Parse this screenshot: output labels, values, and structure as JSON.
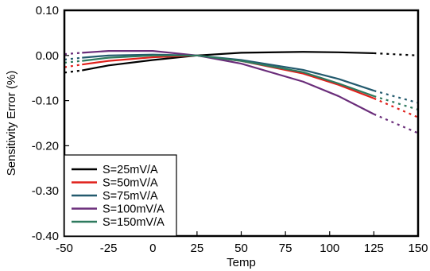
{
  "chart_data": {
    "type": "line",
    "xlabel": "Temp",
    "ylabel": "Sensitivity Error (%)",
    "xlim": [
      -50,
      150
    ],
    "ylim": [
      -0.4,
      0.1
    ],
    "xticks": [
      -50,
      -25,
      0,
      25,
      50,
      75,
      100,
      125,
      150
    ],
    "yticks": [
      0.1,
      0.0,
      -0.1,
      -0.2,
      -0.3,
      -0.4
    ],
    "xtick_labels": [
      "-50",
      "-25",
      "0",
      "25",
      "50",
      "75",
      "100",
      "125",
      "150"
    ],
    "ytick_labels": [
      "0.10",
      "0.00",
      "-0.10",
      "-0.20",
      "-0.30",
      "-0.40"
    ],
    "grid": false,
    "legend_position": "bottom-left",
    "series": [
      {
        "name": "S=25mV/A",
        "color": "#000000",
        "solid": {
          "x": [
            -40,
            -25,
            0,
            25,
            50,
            85,
            105,
            125
          ],
          "y": [
            -0.033,
            -0.022,
            -0.01,
            0.0,
            0.006,
            0.008,
            0.007,
            0.005
          ]
        },
        "dashed": [
          {
            "x": [
              -50,
              -40
            ],
            "y": [
              -0.038,
              -0.033
            ]
          },
          {
            "x": [
              125,
              150
            ],
            "y": [
              0.005,
              0.0
            ]
          }
        ]
      },
      {
        "name": "S=50mV/A",
        "color": "#e0201b",
        "solid": {
          "x": [
            -40,
            -25,
            0,
            25,
            50,
            85,
            105,
            125
          ],
          "y": [
            -0.02,
            -0.012,
            -0.004,
            0.0,
            -0.012,
            -0.04,
            -0.065,
            -0.095
          ]
        },
        "dashed": [
          {
            "x": [
              -50,
              -40
            ],
            "y": [
              -0.026,
              -0.02
            ]
          },
          {
            "x": [
              125,
              150
            ],
            "y": [
              -0.095,
              -0.137
            ]
          }
        ]
      },
      {
        "name": "S=75mV/A",
        "color": "#235a6e",
        "solid": {
          "x": [
            -40,
            -25,
            0,
            25,
            50,
            85,
            105,
            125
          ],
          "y": [
            -0.005,
            0.0,
            0.002,
            0.0,
            -0.01,
            -0.032,
            -0.052,
            -0.078
          ]
        },
        "dashed": [
          {
            "x": [
              -50,
              -40
            ],
            "y": [
              -0.009,
              -0.005
            ]
          },
          {
            "x": [
              125,
              150
            ],
            "y": [
              -0.078,
              -0.105
            ]
          }
        ]
      },
      {
        "name": "S=100mV/A",
        "color": "#6a2d7a",
        "solid": {
          "x": [
            -40,
            -25,
            0,
            25,
            50,
            85,
            105,
            125
          ],
          "y": [
            0.006,
            0.01,
            0.01,
            0.0,
            -0.018,
            -0.058,
            -0.09,
            -0.13
          ]
        },
        "dashed": [
          {
            "x": [
              -50,
              -40
            ],
            "y": [
              0.003,
              0.006
            ]
          },
          {
            "x": [
              125,
              150
            ],
            "y": [
              -0.13,
              -0.172
            ]
          }
        ]
      },
      {
        "name": "S=150mV/A",
        "color": "#2e7a5e",
        "solid": {
          "x": [
            -40,
            -25,
            0,
            25,
            50,
            85,
            105,
            125
          ],
          "y": [
            -0.012,
            -0.005,
            0.0,
            0.0,
            -0.012,
            -0.037,
            -0.062,
            -0.09
          ]
        },
        "dashed": [
          {
            "x": [
              -50,
              -40
            ],
            "y": [
              -0.016,
              -0.012
            ]
          },
          {
            "x": [
              125,
              150
            ],
            "y": [
              -0.09,
              -0.12
            ]
          }
        ]
      }
    ]
  }
}
